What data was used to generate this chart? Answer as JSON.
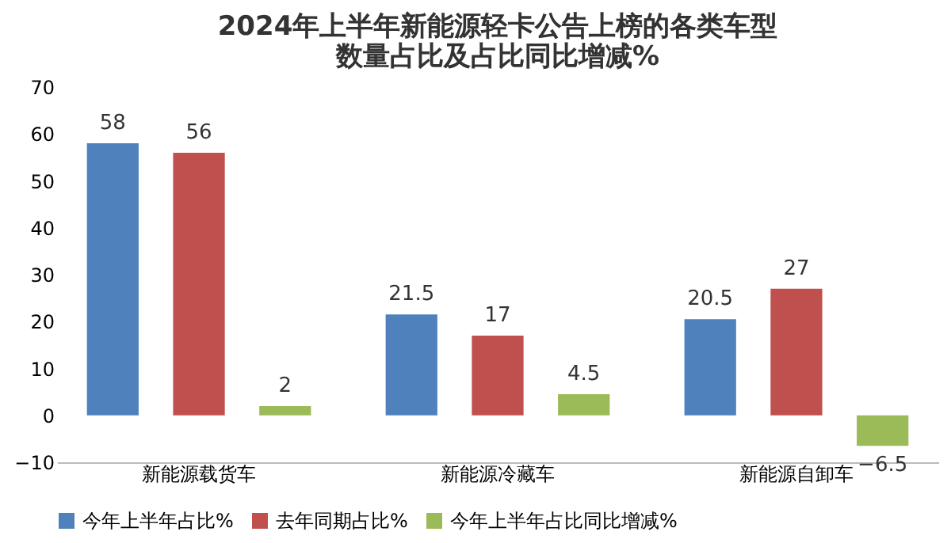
{
  "chart_data": {
    "type": "bar",
    "title": "2024年上半年新能源轻卡公告上榜的各类车型数量占比及占比同比增减%",
    "categories": [
      "新能源载货车",
      "新能源冷藏车",
      "新能源自卸车"
    ],
    "series": [
      {
        "name": "今年上半年占比%",
        "color": "#4f81bd",
        "values": [
          58,
          21.5,
          20.5
        ]
      },
      {
        "name": "去年同期占比%",
        "color": "#c0504d",
        "values": [
          56,
          17,
          27
        ]
      },
      {
        "name": "今年上半年占比同比增减%",
        "color": "#9bbb59",
        "values": [
          2,
          4.5,
          -6.5
        ]
      }
    ],
    "ylim": [
      -10,
      70
    ],
    "yticks": [
      -10,
      0,
      10,
      20,
      30,
      40,
      50,
      60,
      70
    ],
    "grid": false,
    "legend": "bottom",
    "data_labels": true
  }
}
